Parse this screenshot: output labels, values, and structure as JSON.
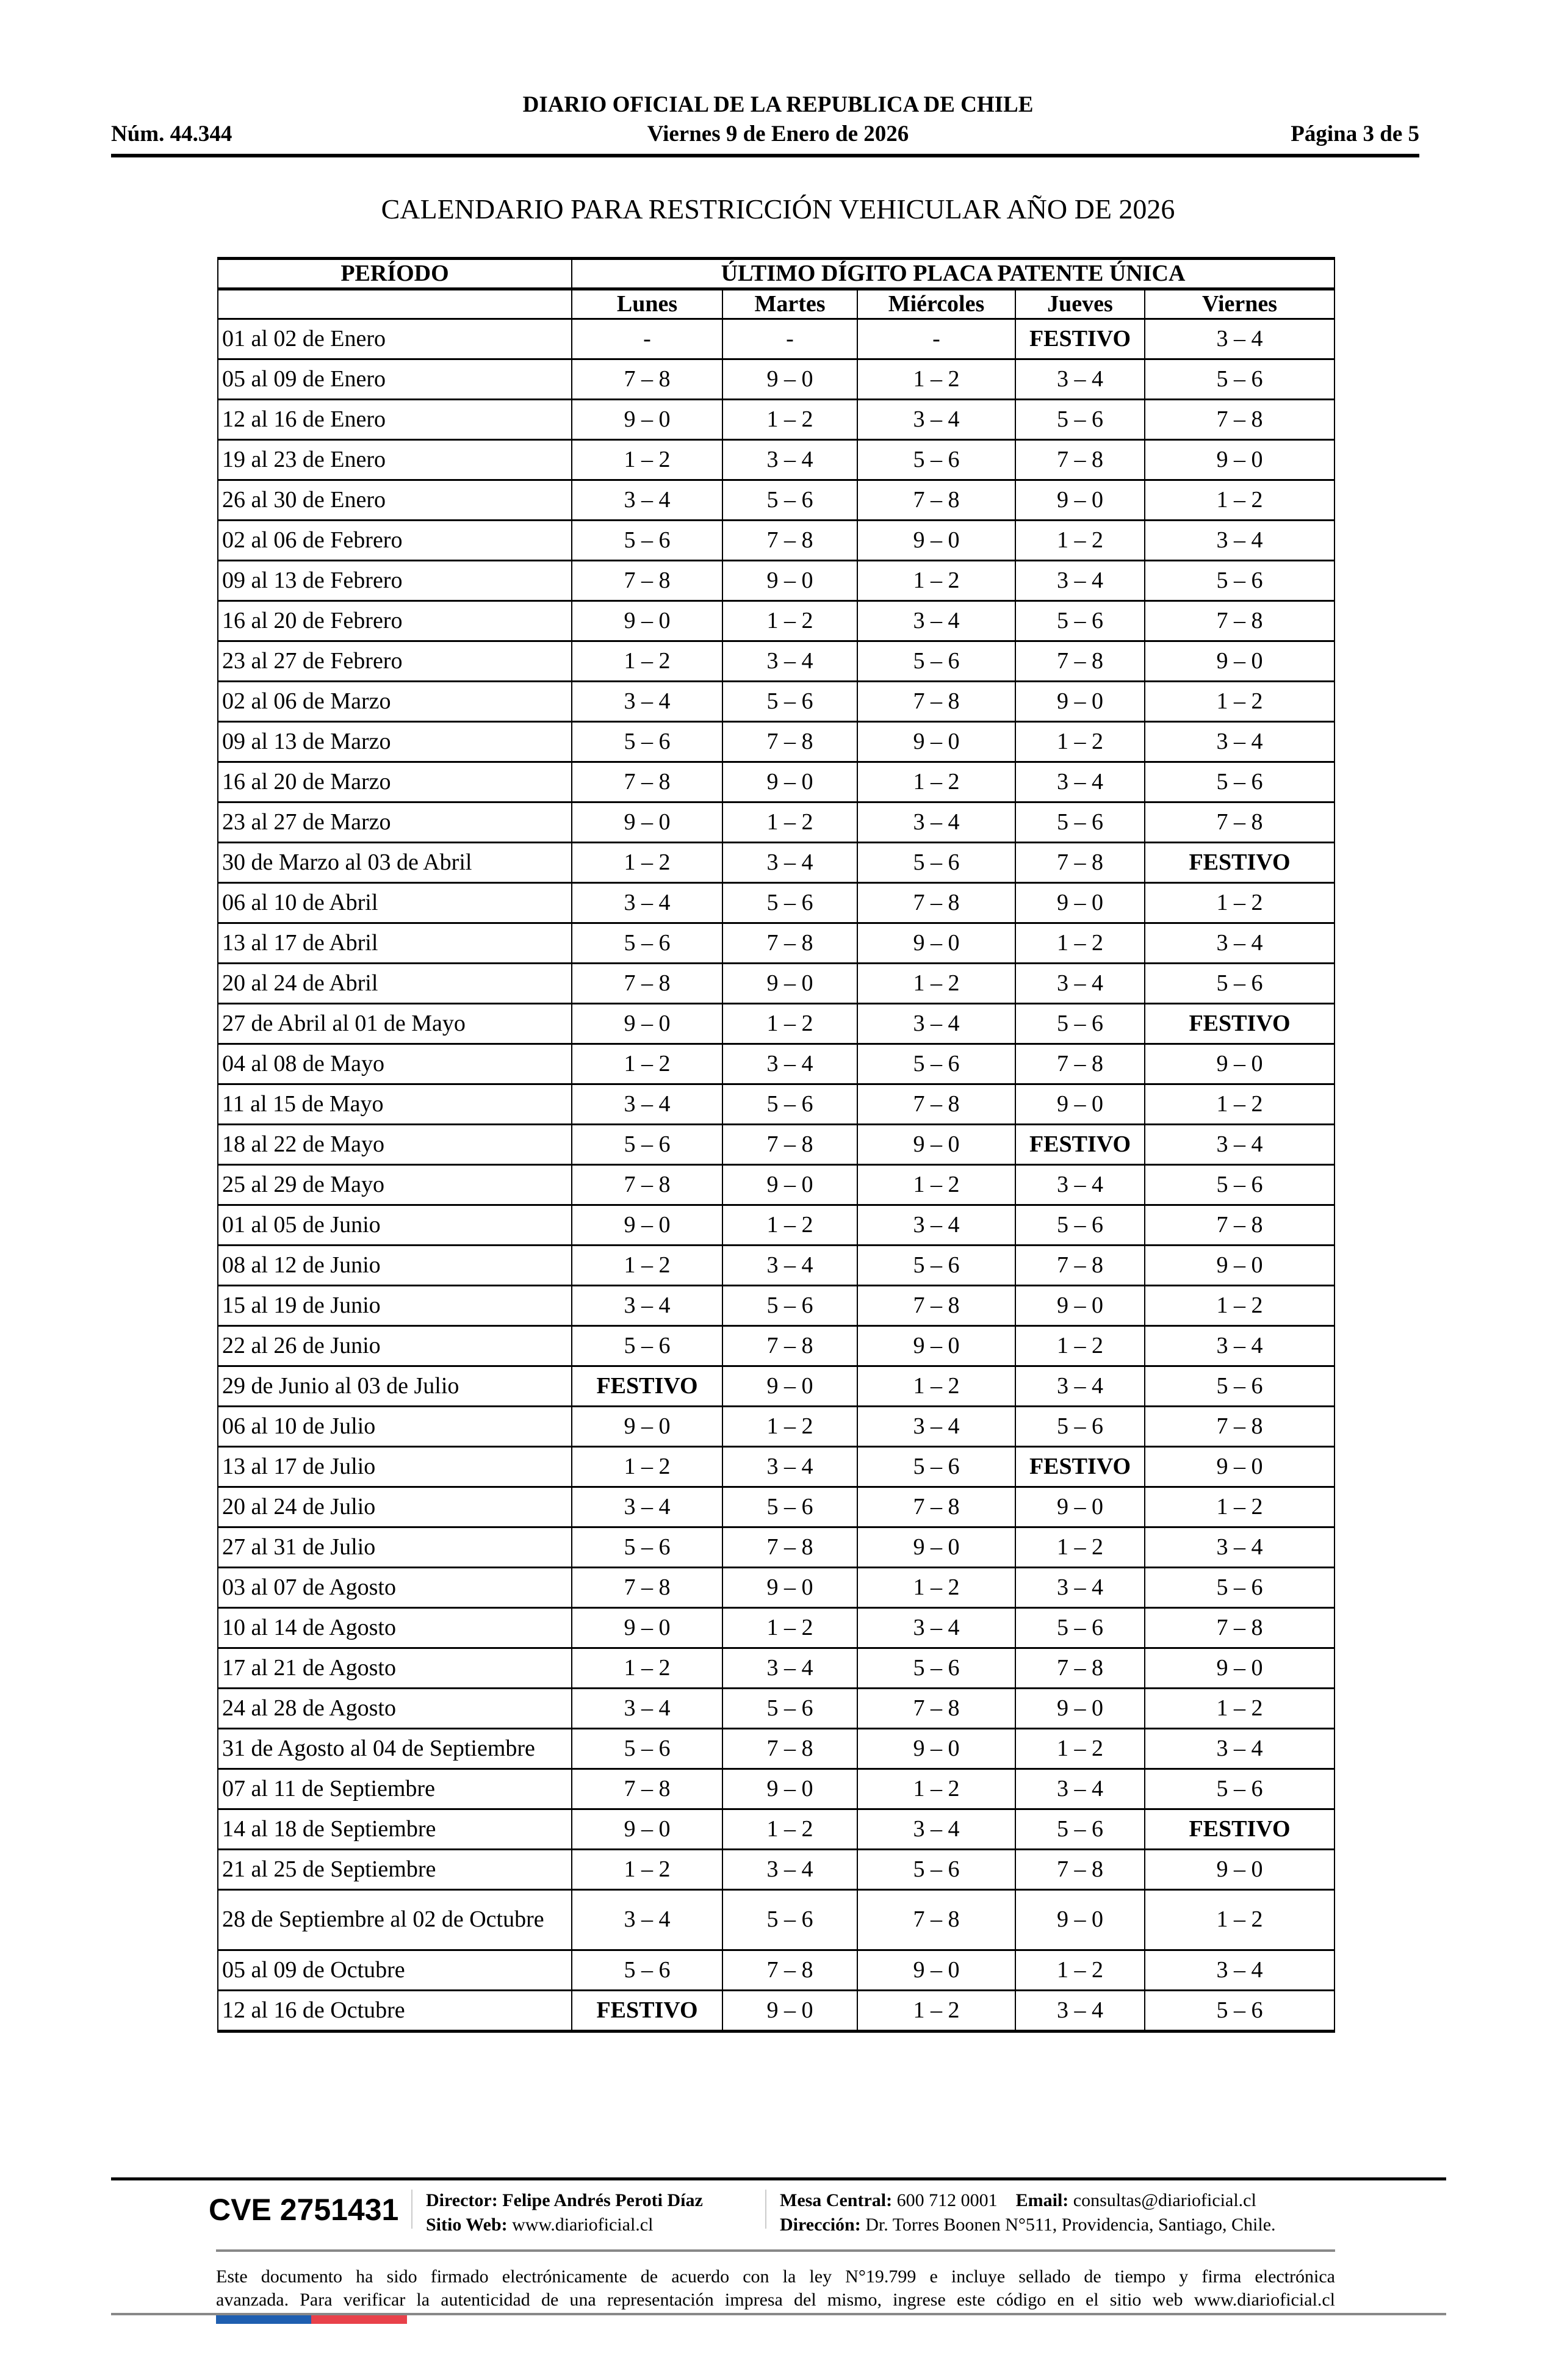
{
  "header": {
    "publication": "DIARIO OFICIAL DE LA REPUBLICA DE CHILE",
    "number": "Núm. 44.344",
    "date": "Viernes 9 de Enero de 2026",
    "page": "Página 3 de 5"
  },
  "title": "CALENDARIO PARA RESTRICCIÓN VEHICULAR AÑO DE 2026",
  "table": {
    "period_header": "PERÍODO",
    "group_header": "ÚLTIMO DÍGITO PLACA PATENTE ÚNICA",
    "days": [
      "Lunes",
      "Martes",
      "Miércoles",
      "Jueves",
      "Viernes"
    ],
    "rows": [
      {
        "period": "01 al 02 de Enero",
        "values": [
          "-",
          "-",
          "-",
          "FESTIVO",
          "3 – 4"
        ]
      },
      {
        "period": "05 al 09 de Enero",
        "values": [
          "7 – 8",
          "9 – 0",
          "1 – 2",
          "3 – 4",
          "5 – 6"
        ]
      },
      {
        "period": "12 al 16 de Enero",
        "values": [
          "9 – 0",
          "1 – 2",
          "3 – 4",
          "5 – 6",
          "7 – 8"
        ]
      },
      {
        "period": "19 al 23 de Enero",
        "values": [
          "1 – 2",
          "3 – 4",
          "5 – 6",
          "7 – 8",
          "9 – 0"
        ]
      },
      {
        "period": "26 al 30 de Enero",
        "values": [
          "3 – 4",
          "5 – 6",
          "7 – 8",
          "9 – 0",
          "1 – 2"
        ]
      },
      {
        "period": "02 al 06 de Febrero",
        "values": [
          "5 – 6",
          "7 – 8",
          "9 – 0",
          "1 – 2",
          "3 – 4"
        ]
      },
      {
        "period": "09 al 13 de Febrero",
        "values": [
          "7 – 8",
          "9 – 0",
          "1 – 2",
          "3 – 4",
          "5 – 6"
        ]
      },
      {
        "period": "16 al 20 de Febrero",
        "values": [
          "9 – 0",
          "1 – 2",
          "3 – 4",
          "5 – 6",
          "7 – 8"
        ]
      },
      {
        "period": "23 al 27 de Febrero",
        "values": [
          "1 – 2",
          "3 – 4",
          "5 – 6",
          "7 – 8",
          "9 – 0"
        ]
      },
      {
        "period": "02 al 06 de Marzo",
        "values": [
          "3 – 4",
          "5 – 6",
          "7 – 8",
          "9 – 0",
          "1 – 2"
        ]
      },
      {
        "period": "09 al 13 de Marzo",
        "values": [
          "5 – 6",
          "7 – 8",
          "9 – 0",
          "1 – 2",
          "3 – 4"
        ]
      },
      {
        "period": "16 al 20 de Marzo",
        "values": [
          "7 – 8",
          "9 – 0",
          "1 – 2",
          "3 – 4",
          "5 – 6"
        ]
      },
      {
        "period": "23 al 27 de Marzo",
        "values": [
          "9 – 0",
          "1 – 2",
          "3 – 4",
          "5 – 6",
          "7 – 8"
        ]
      },
      {
        "period": "30 de Marzo al 03 de Abril",
        "values": [
          "1 – 2",
          "3 – 4",
          "5 – 6",
          "7 – 8",
          "FESTIVO"
        ]
      },
      {
        "period": "06 al 10 de Abril",
        "values": [
          "3 – 4",
          "5 – 6",
          "7 – 8",
          "9 – 0",
          "1 – 2"
        ]
      },
      {
        "period": "13 al 17 de Abril",
        "values": [
          "5 – 6",
          "7 – 8",
          "9 – 0",
          "1 – 2",
          "3 – 4"
        ]
      },
      {
        "period": "20 al 24 de Abril",
        "values": [
          "7 – 8",
          "9 – 0",
          "1 – 2",
          "3 – 4",
          "5 – 6"
        ]
      },
      {
        "period": "27 de Abril al 01 de Mayo",
        "values": [
          "9 – 0",
          "1 – 2",
          "3 – 4",
          "5 – 6",
          "FESTIVO"
        ]
      },
      {
        "period": "04 al 08 de Mayo",
        "values": [
          "1 – 2",
          "3 – 4",
          "5 – 6",
          "7 – 8",
          "9 – 0"
        ]
      },
      {
        "period": "11 al 15 de Mayo",
        "values": [
          "3 – 4",
          "5 – 6",
          "7 – 8",
          "9 – 0",
          "1 – 2"
        ]
      },
      {
        "period": "18 al 22 de Mayo",
        "values": [
          "5 – 6",
          "7 – 8",
          "9 – 0",
          "FESTIVO",
          "3 – 4"
        ]
      },
      {
        "period": "25 al 29 de Mayo",
        "values": [
          "7 – 8",
          "9 – 0",
          "1 – 2",
          "3 – 4",
          "5 – 6"
        ]
      },
      {
        "period": "01 al 05 de Junio",
        "values": [
          "9 – 0",
          "1 – 2",
          "3 – 4",
          "5 – 6",
          "7 – 8"
        ]
      },
      {
        "period": "08 al 12 de Junio",
        "values": [
          "1 – 2",
          "3 – 4",
          "5 – 6",
          "7 – 8",
          "9 – 0"
        ]
      },
      {
        "period": "15 al 19 de Junio",
        "values": [
          "3 – 4",
          "5 – 6",
          "7 – 8",
          "9 – 0",
          "1 – 2"
        ]
      },
      {
        "period": "22 al 26 de Junio",
        "values": [
          "5 – 6",
          "7 – 8",
          "9 – 0",
          "1 – 2",
          "3 – 4"
        ]
      },
      {
        "period": "29 de Junio al 03 de Julio",
        "values": [
          "FESTIVO",
          "9 – 0",
          "1 – 2",
          "3 – 4",
          "5 – 6"
        ]
      },
      {
        "period": "06 al 10 de Julio",
        "values": [
          "9 – 0",
          "1 – 2",
          "3 – 4",
          "5 – 6",
          "7 – 8"
        ]
      },
      {
        "period": "13 al 17 de Julio",
        "values": [
          "1 – 2",
          "3 – 4",
          "5 – 6",
          "FESTIVO",
          "9 – 0"
        ]
      },
      {
        "period": "20 al 24 de Julio",
        "values": [
          "3 – 4",
          "5 – 6",
          "7 – 8",
          "9 – 0",
          "1 – 2"
        ]
      },
      {
        "period": "27 al 31 de Julio",
        "values": [
          "5 – 6",
          "7 – 8",
          "9 – 0",
          "1 – 2",
          "3 – 4"
        ]
      },
      {
        "period": "03 al 07 de Agosto",
        "values": [
          "7 – 8",
          "9 – 0",
          "1 – 2",
          "3 – 4",
          "5 – 6"
        ]
      },
      {
        "period": "10 al 14 de Agosto",
        "values": [
          "9 – 0",
          "1 – 2",
          "3 – 4",
          "5 – 6",
          "7 – 8"
        ]
      },
      {
        "period": "17 al 21 de Agosto",
        "values": [
          "1 – 2",
          "3 – 4",
          "5 – 6",
          "7 – 8",
          "9 – 0"
        ]
      },
      {
        "period": "24 al 28 de Agosto",
        "values": [
          "3 – 4",
          "5 – 6",
          "7 – 8",
          "9 – 0",
          "1 – 2"
        ]
      },
      {
        "period": "31 de Agosto al 04 de Septiembre",
        "values": [
          "5 – 6",
          "7 – 8",
          "9 – 0",
          "1 – 2",
          "3 – 4"
        ]
      },
      {
        "period": "07 al 11 de Septiembre",
        "values": [
          "7 – 8",
          "9 – 0",
          "1 – 2",
          "3 – 4",
          "5 – 6"
        ]
      },
      {
        "period": "14 al 18 de Septiembre",
        "values": [
          "9 – 0",
          "1 – 2",
          "3 – 4",
          "5 – 6",
          "FESTIVO"
        ]
      },
      {
        "period": "21 al 25 de Septiembre",
        "values": [
          "1 – 2",
          "3 – 4",
          "5 – 6",
          "7 – 8",
          "9 – 0"
        ]
      },
      {
        "period": "28 de Septiembre al 02 de Octubre",
        "values": [
          "3 – 4",
          "5 – 6",
          "7 – 8",
          "9 – 0",
          "1 – 2"
        ]
      },
      {
        "period": "05 al 09 de Octubre",
        "values": [
          "5 – 6",
          "7 – 8",
          "9 – 0",
          "1 – 2",
          "3 – 4"
        ]
      },
      {
        "period": "12 al 16 de Octubre",
        "values": [
          "FESTIVO",
          "9 – 0",
          "1 – 2",
          "3 – 4",
          "5 – 6"
        ]
      }
    ]
  },
  "footer": {
    "cve": "CVE 2751431",
    "director_label": "Director:",
    "director": "Felipe Andrés Peroti Díaz",
    "website_label": "Sitio Web:",
    "website": "www.diarioficial.cl",
    "phone_label": "Mesa Central:",
    "phone": "600 712 0001",
    "email_label": "Email:",
    "email": "consultas@diarioficial.cl",
    "address_label": "Dirección:",
    "address": "Dr. Torres Boonen N°511, Providencia, Santiago, Chile.",
    "disclaimer_line1": "Este documento ha sido firmado electrónicamente de acuerdo con la ley N°19.799 e incluye sellado de tiempo y firma electrónica",
    "disclaimer_line2": "avanzada. Para verificar la autenticidad de una representación impresa del mismo, ingrese este código en el sitio web www.diarioficial.cl"
  },
  "colors": {
    "flag_blue": "#1f5fb0",
    "flag_red": "#e8414a"
  }
}
